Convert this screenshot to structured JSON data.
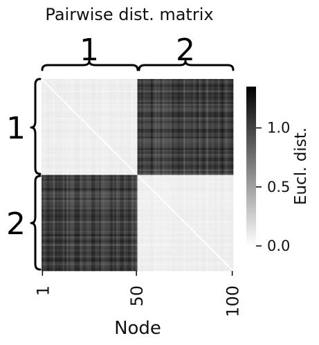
{
  "chart_data": {
    "type": "heatmap",
    "title": "Pairwise dist. matrix",
    "xlabel": "Node",
    "ylabel": "",
    "x_ticks": [
      "1",
      "50",
      "100"
    ],
    "x_tick_values": [
      1,
      50,
      100
    ],
    "n_nodes": 100,
    "blocks": [
      {
        "label": "1",
        "start": 1,
        "end": 50
      },
      {
        "label": "2",
        "start": 51,
        "end": 100
      }
    ],
    "within_block_distance": 0.1,
    "between_block_distance": 1.0,
    "colorbar": {
      "label": "Eucl. dist.",
      "range": [
        0.0,
        1.35
      ],
      "ticks": [
        "0.0",
        "0.5",
        "1.0"
      ],
      "tick_values": [
        0.0,
        0.5,
        1.0
      ],
      "colormap": "white-to-black"
    }
  }
}
